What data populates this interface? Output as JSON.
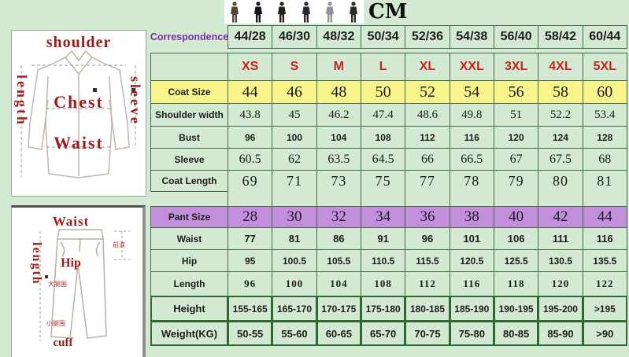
{
  "page": {
    "unit_label": "CM"
  },
  "colors": {
    "background": "#d4e9d1",
    "row_yellow": "#f8f48c",
    "row_purple": "#c38fdb",
    "size_red": "#c4231f",
    "correspondence_purple": "#7b2fa3",
    "diagram_red": "#9b1c1c",
    "border_green": "#44684e",
    "border_dark_green": "#2c6b33"
  },
  "figures": {
    "count": 6
  },
  "diagrams": {
    "jacket": {
      "shoulder": "shoulder",
      "length": "length",
      "sleeve": "sleeve",
      "chest": "Chest",
      "waist": "Waist"
    },
    "pants": {
      "waist": "Waist",
      "length": "length",
      "hip": "Hip",
      "cuff": "cuff",
      "front_rise": "前浪",
      "thigh": "大腿围",
      "calf": "小腿围"
    }
  },
  "chart_data": {
    "type": "table",
    "title": "Suit size chart",
    "unit": "CM",
    "rows": [
      {
        "key": "correspondence",
        "label": "Correspondence",
        "values": [
          "44/28",
          "46/30",
          "48/32",
          "50/34",
          "52/36",
          "54/38",
          "56/40",
          "58/42",
          "60/44"
        ]
      },
      {
        "key": "size",
        "label": "",
        "values": [
          "XS",
          "S",
          "M",
          "L",
          "XL",
          "XXL",
          "3XL",
          "4XL",
          "5XL"
        ]
      },
      {
        "key": "coat_size",
        "label": "Coat Size",
        "values": [
          "44",
          "46",
          "48",
          "50",
          "52",
          "54",
          "56",
          "58",
          "60"
        ]
      },
      {
        "key": "shoulder_width",
        "label": "Shoulder width",
        "values": [
          "43.8",
          "45",
          "46.2",
          "47.4",
          "48.6",
          "49.8",
          "51",
          "52.2",
          "53.4"
        ]
      },
      {
        "key": "bust",
        "label": "Bust",
        "values": [
          "96",
          "100",
          "104",
          "108",
          "112",
          "116",
          "120",
          "124",
          "128"
        ]
      },
      {
        "key": "sleeve",
        "label": "Sleeve",
        "values": [
          "60.5",
          "62",
          "63.5",
          "64.5",
          "66",
          "66.5",
          "67",
          "67.5",
          "68"
        ]
      },
      {
        "key": "coat_length",
        "label": "Coat Length",
        "values": [
          "69",
          "71",
          "73",
          "75",
          "77",
          "78",
          "79",
          "80",
          "81"
        ]
      },
      {
        "key": "spacer",
        "label": "",
        "values": [
          "",
          "",
          "",
          "",
          "",
          "",
          "",
          "",
          ""
        ]
      },
      {
        "key": "pant_size",
        "label": "Pant Size",
        "values": [
          "28",
          "30",
          "32",
          "34",
          "36",
          "38",
          "40",
          "42",
          "44"
        ]
      },
      {
        "key": "waist",
        "label": "Waist",
        "values": [
          "77",
          "81",
          "86",
          "91",
          "96",
          "101",
          "106",
          "111",
          "116"
        ]
      },
      {
        "key": "hip",
        "label": "Hip",
        "values": [
          "95",
          "100.5",
          "105.5",
          "110.5",
          "115.5",
          "120.5",
          "125.5",
          "130.5",
          "135.5"
        ]
      },
      {
        "key": "length",
        "label": "Length",
        "values": [
          "96",
          "100",
          "104",
          "108",
          "112",
          "116",
          "118",
          "120",
          "122"
        ]
      },
      {
        "key": "height",
        "label": "Height",
        "values": [
          "155-165",
          "165-170",
          "170-175",
          "175-180",
          "180-185",
          "185-190",
          "190-195",
          "195-200",
          ">195"
        ]
      },
      {
        "key": "weight",
        "label": "Weight(KG)",
        "values": [
          "50-55",
          "55-60",
          "60-65",
          "65-70",
          "70-75",
          "75-80",
          "80-85",
          "85-90",
          ">90"
        ]
      }
    ]
  }
}
